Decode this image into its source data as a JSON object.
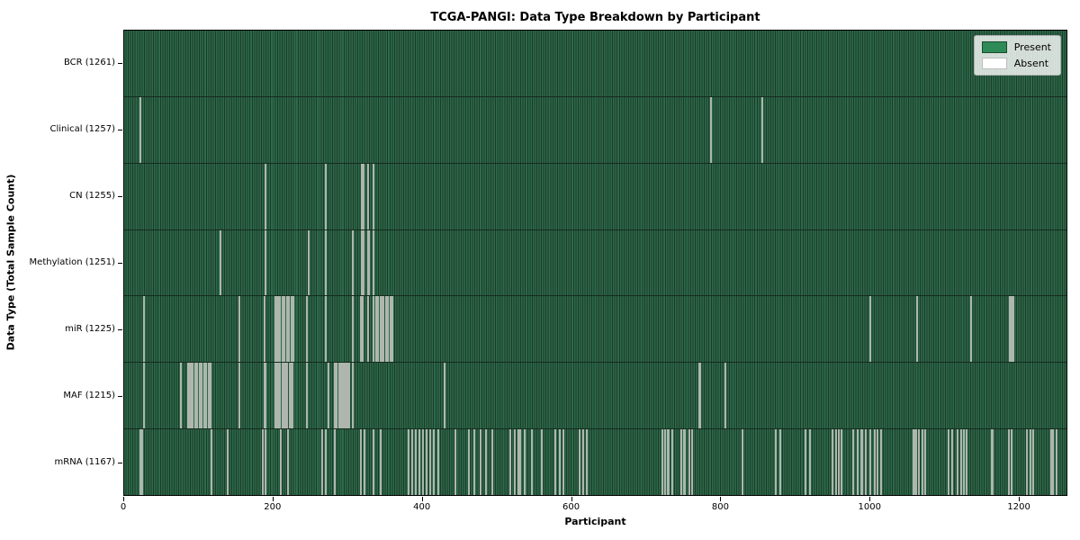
{
  "title": "TCGA-PANGI: Data Type Breakdown by Participant",
  "xlabel": "Participant",
  "ylabel": "Data Type (Total Sample Count)",
  "legend": {
    "present_label": "Present",
    "absent_label": "Absent"
  },
  "colors": {
    "present": "#2e8b57",
    "stripe_green": "#2d6a4b",
    "stripe_dark": "#1c3a27",
    "absent_line": "#aeb6ae"
  },
  "chart_data": {
    "type": "heatmap",
    "title": "TCGA-PANGI: Data Type Breakdown by Participant",
    "xlabel": "Participant",
    "ylabel": "Data Type (Total Sample Count)",
    "legend_entries": [
      "Present",
      "Absent"
    ],
    "legend_position": "upper right",
    "grid": false,
    "n_participants": 1261,
    "x_axis_max": 1265,
    "x_ticks": [
      0,
      200,
      400,
      600,
      800,
      1000,
      1200
    ],
    "rows": [
      {
        "label": "BCR (1261)",
        "data_type": "BCR",
        "total": 1261,
        "absent": []
      },
      {
        "label": "Clinical (1257)",
        "data_type": "Clinical",
        "total": 1257,
        "absent": [
          20,
          21,
          787,
          856
        ]
      },
      {
        "label": "CN (1255)",
        "data_type": "CN",
        "total": 1255,
        "absent": [
          189,
          270,
          318,
          320,
          326,
          333
        ]
      },
      {
        "label": "Methylation (1251)",
        "data_type": "Methylation",
        "total": 1251,
        "absent": [
          128,
          189,
          246,
          270,
          306,
          318,
          320,
          326,
          327,
          333
        ]
      },
      {
        "label": "miR (1225)",
        "data_type": "miR",
        "total": 1225,
        "absent": [
          25,
          154,
          187,
          202,
          203,
          205,
          206,
          208,
          211,
          214,
          218,
          220,
          223,
          226,
          244,
          270,
          306,
          316,
          319,
          326,
          333,
          337,
          340,
          343,
          345,
          347,
          350,
          353,
          356,
          359,
          1001,
          1063,
          1136,
          1188,
          1190,
          1192
        ]
      },
      {
        "label": "MAF (1215)",
        "data_type": "MAF",
        "total": 1215,
        "absent": [
          25,
          75,
          85,
          87,
          88,
          91,
          94,
          97,
          100,
          103,
          106,
          109,
          112,
          115,
          154,
          187,
          189,
          202,
          203,
          205,
          206,
          208,
          211,
          212,
          214,
          215,
          218,
          221,
          223,
          225,
          244,
          273,
          281,
          284,
          288,
          290,
          292,
          293,
          296,
          298,
          301,
          306,
          429,
          771,
          772,
          806
        ]
      },
      {
        "label": "mRNA (1167)",
        "data_type": "mRNA",
        "total": 1167,
        "absent": [
          20,
          23,
          116,
          138,
          185,
          188,
          209,
          219,
          265,
          270,
          281,
          317,
          321,
          333,
          343,
          381,
          385,
          390,
          395,
          400,
          405,
          410,
          415,
          421,
          443,
          461,
          469,
          477,
          484,
          493,
          517,
          523,
          528,
          531,
          537,
          546,
          560,
          578,
          583,
          588,
          610,
          615,
          620,
          721,
          725,
          728,
          730,
          734,
          747,
          750,
          752,
          757,
          761,
          829,
          874,
          880,
          914,
          919,
          920,
          950,
          954,
          958,
          962,
          978,
          984,
          988,
          990,
          994,
          1001,
          1006,
          1010,
          1015,
          1058,
          1060,
          1062,
          1066,
          1070,
          1074,
          1106,
          1110,
          1118,
          1122,
          1126,
          1130,
          1163,
          1165,
          1187,
          1190,
          1211,
          1215,
          1219,
          1243,
          1246,
          1250
        ]
      }
    ]
  }
}
